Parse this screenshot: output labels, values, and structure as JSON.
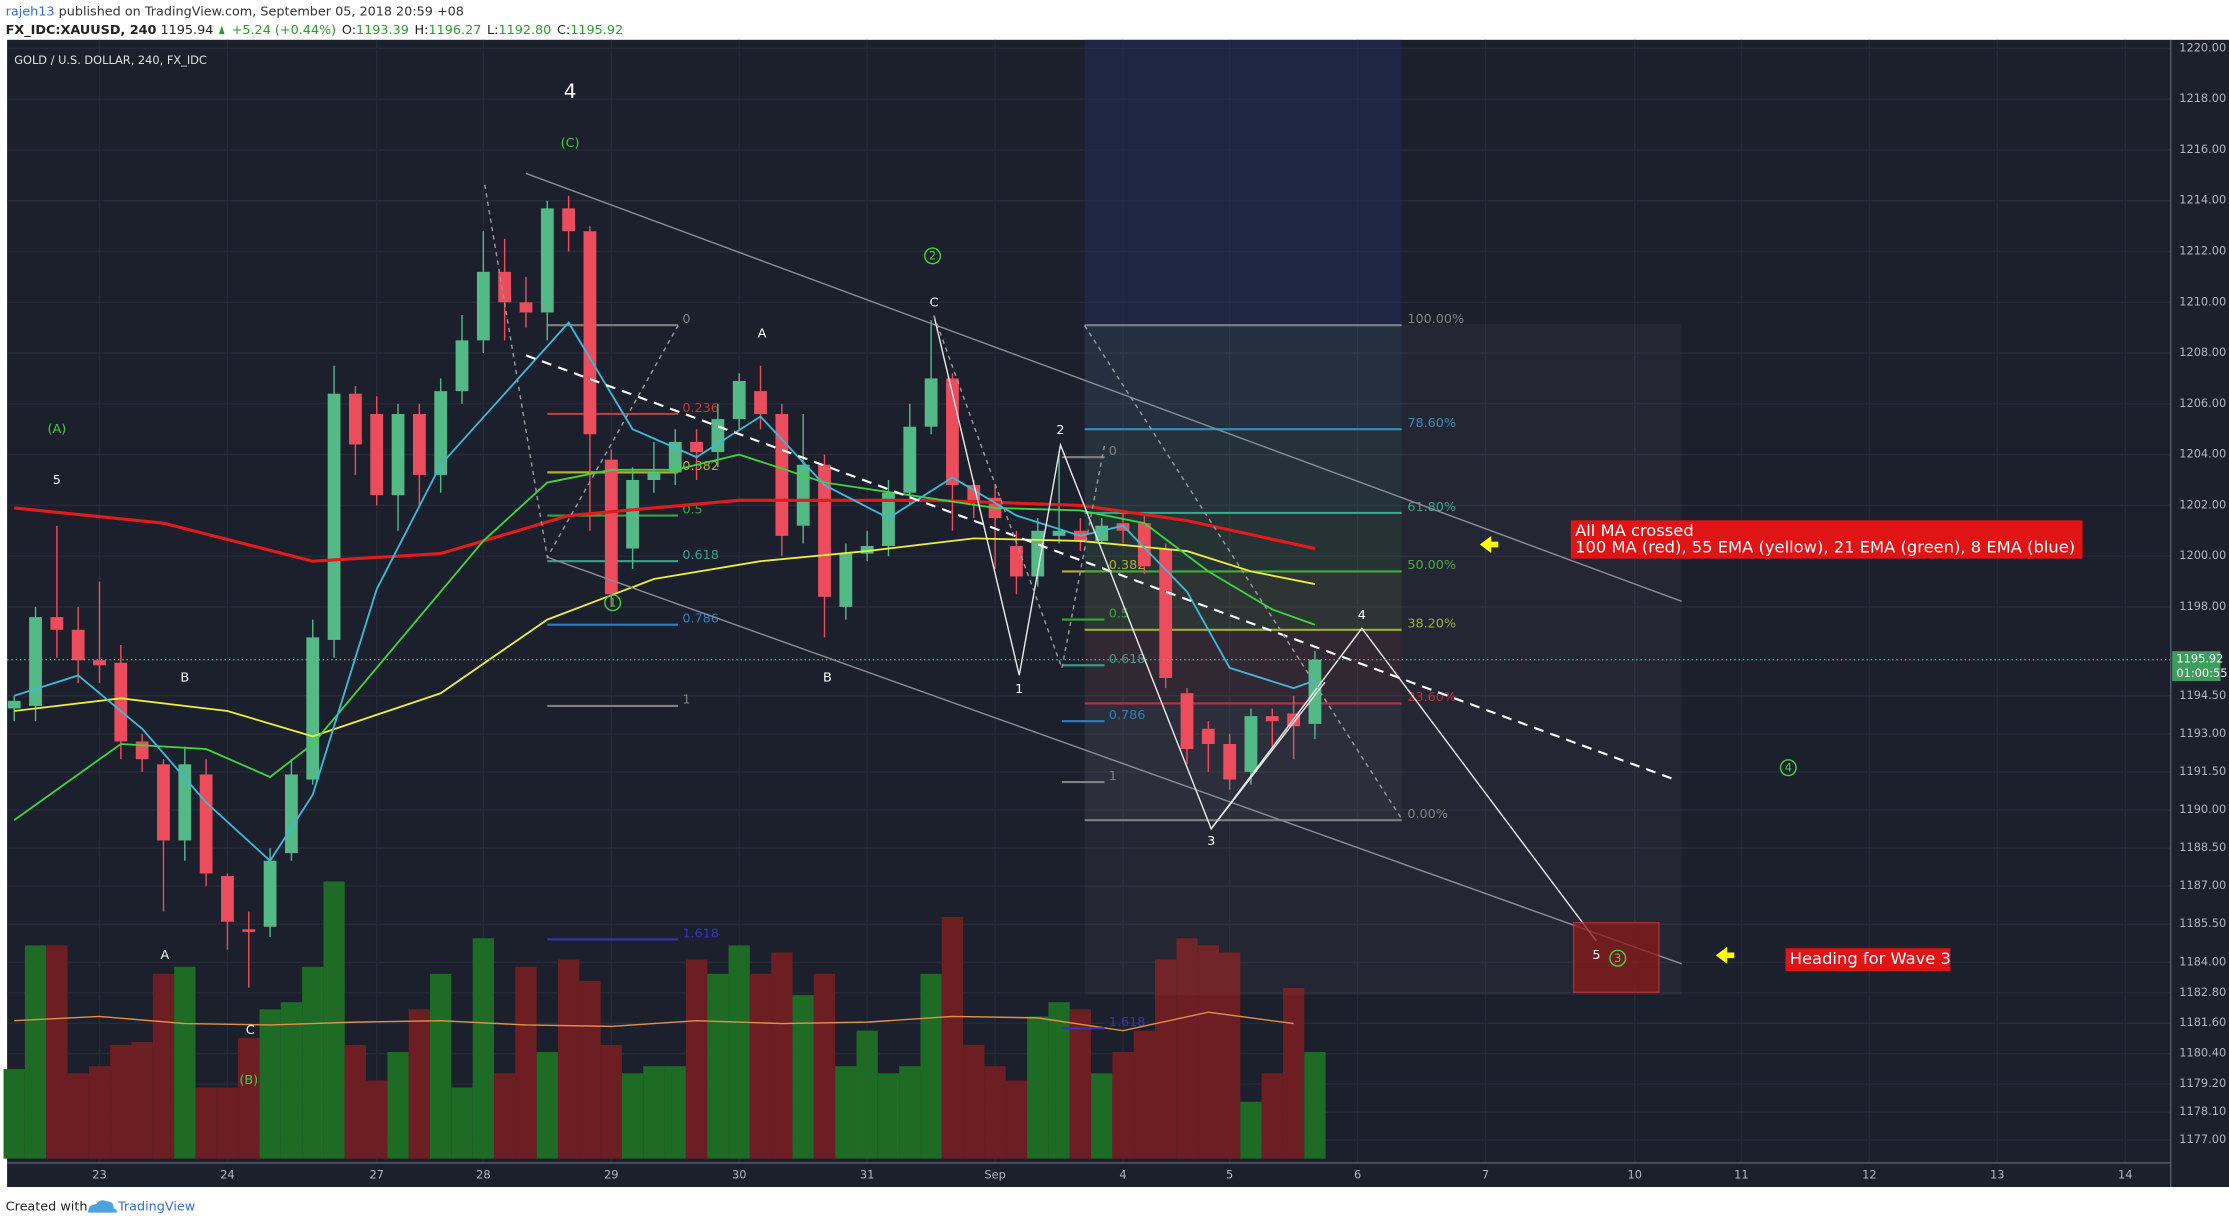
{
  "header": {
    "author": "rajeh13",
    "published": "published on TradingView.com, September 05, 2018 20:59 +08",
    "symbol": "FX_IDC:XAUUSD, 240",
    "last": "1195.94",
    "change": "+5.24 (+0.44%)",
    "ohlc": [
      [
        "O:",
        "1193.39"
      ],
      [
        "H:",
        "1196.27"
      ],
      [
        "L:",
        "1192.80"
      ],
      [
        "C:",
        "1195.92"
      ]
    ]
  },
  "chart_data": {
    "type": "candlestick",
    "title": "GOLD / U.S. DOLLAR, 240, FX_IDC",
    "open": [
      1194,
      1194.1,
      1197.6,
      1197.1,
      1195.9,
      1195.8,
      1192.7,
      1191.8,
      1188.8,
      1191.4,
      1187.4,
      1185.3,
      1185.4,
      1188.3,
      1191.2,
      1196.7,
      1206.4,
      1205.6,
      1202.4,
      1205.6,
      1203.2,
      1206.5,
      1208.5,
      1211.2,
      1210,
      1209.6,
      1213.7,
      1212.8,
      1203.8,
      1200.3,
      1203,
      1203.3,
      1204.5,
      1204.1,
      1205.4,
      1206.5,
      1205.6,
      1201.2,
      1203.6,
      1198,
      1200.1,
      1200.4,
      1202.5,
      1205.1,
      1207,
      1202.8,
      1202.3,
      1200.4,
      1199.2,
      1200.8,
      1201,
      1200.6,
      1201.3,
      1201.3,
      1200.3,
      1194.6,
      1193.2,
      1192.6,
      1191.5,
      1193.7,
      1193.8,
      1193.39
    ],
    "high": [
      1194.5,
      1198,
      1201.2,
      1198,
      1199,
      1196.5,
      1193,
      1192,
      1192.5,
      1192,
      1187.5,
      1186,
      1188.5,
      1192,
      1197.5,
      1207.5,
      1206.7,
      1206.3,
      1206,
      1206,
      1207,
      1209.5,
      1212.8,
      1212.5,
      1211,
      1214,
      1214.2,
      1213,
      1204.2,
      1203.5,
      1204.5,
      1205,
      1205,
      1206,
      1207.2,
      1207.5,
      1206,
      1205.6,
      1204,
      1200.5,
      1201,
      1203,
      1206,
      1209.3,
      1207.2,
      1203,
      1202.8,
      1201,
      1201.5,
      1204,
      1201.5,
      1201.5,
      1201.7,
      1201.6,
      1200.5,
      1194.8,
      1193.5,
      1193,
      1194,
      1194,
      1194.5,
      1196.27
    ],
    "low": [
      1193.5,
      1193.5,
      1196,
      1195,
      1195,
      1192,
      1191.5,
      1186,
      1188,
      1187,
      1184.5,
      1183,
      1185,
      1188,
      1191,
      1196,
      1203.2,
      1202,
      1201,
      1202,
      1202.5,
      1206,
      1208,
      1208.5,
      1209,
      1208.5,
      1212,
      1201,
      1198,
      1199.5,
      1202.5,
      1202.8,
      1203,
      1203.5,
      1205,
      1205,
      1200,
      1200.5,
      1196.8,
      1197.5,
      1199.8,
      1200,
      1202,
      1204.8,
      1201,
      1201.5,
      1199.5,
      1198.5,
      1198.8,
      1200.5,
      1200.2,
      1200.5,
      1200.5,
      1199.3,
      1194.8,
      1191.8,
      1191.5,
      1190.8,
      1191,
      1192.5,
      1192,
      1192.8
    ],
    "close": [
      1194.3,
      1197.6,
      1197.1,
      1195.9,
      1195.7,
      1192.7,
      1192,
      1188.8,
      1191.8,
      1187.5,
      1185.6,
      1185.2,
      1188,
      1191.4,
      1196.8,
      1206.4,
      1204.4,
      1202.4,
      1205.6,
      1203.2,
      1206.5,
      1208.5,
      1211.2,
      1210,
      1209.6,
      1213.7,
      1212.8,
      1204.8,
      1198.5,
      1203,
      1203.3,
      1204.5,
      1204.1,
      1205.4,
      1206.9,
      1205.6,
      1200.8,
      1203.6,
      1198.4,
      1200.1,
      1200.4,
      1202.5,
      1205.1,
      1207,
      1202.8,
      1202.2,
      1201.5,
      1199.2,
      1201,
      1201,
      1200.6,
      1201.2,
      1201,
      1199.6,
      1195.2,
      1192.4,
      1192.6,
      1191.2,
      1193.7,
      1193.5,
      1193.3,
      1195.92
    ],
    "volume": [
      63,
      150,
      150,
      60,
      65,
      80,
      82,
      130,
      135,
      50,
      50,
      85,
      105,
      110,
      135,
      195,
      80,
      55,
      75,
      105,
      130,
      50,
      155,
      60,
      135,
      75,
      140,
      125,
      80,
      60,
      65,
      65,
      140,
      130,
      150,
      130,
      145,
      115,
      130,
      65,
      90,
      60,
      65,
      130,
      170,
      80,
      65,
      55,
      100,
      110,
      105,
      60,
      75,
      90,
      140,
      155,
      150,
      145,
      40,
      60,
      120,
      75
    ],
    "volume_ma": {
      "color": "#e0904a",
      "x": [
        0,
        4,
        8,
        12,
        16,
        20,
        24,
        28,
        32,
        36,
        40,
        44,
        48,
        52,
        56,
        60
      ],
      "values": [
        97,
        100,
        95,
        94,
        96,
        97,
        94,
        93,
        97,
        95,
        96,
        100,
        99,
        90,
        103,
        95
      ]
    },
    "up_color": "#53b987",
    "down_color": "#eb4d5c",
    "up_volume_color": "#1d6b25",
    "down_volume_color": "#6d1e22",
    "ma": [
      {
        "color": "#e31b1b",
        "x": [
          0,
          7,
          14,
          20,
          26,
          34,
          43,
          50,
          55,
          61
        ],
        "values": [
          1201.9,
          1201.3,
          1199.8,
          1200.1,
          1201.6,
          1202.2,
          1202.2,
          1202,
          1201.4,
          1200.3
        ]
      },
      {
        "color": "#ecec3a",
        "x": [
          0,
          5,
          10,
          14,
          20,
          25,
          30,
          35,
          40,
          45,
          50,
          55,
          58,
          61
        ],
        "values": [
          1193.9,
          1194.4,
          1193.9,
          1192.9,
          1194.6,
          1197.5,
          1199.1,
          1199.8,
          1200.2,
          1200.7,
          1200.6,
          1200.2,
          1199.4,
          1198.9
        ]
      },
      {
        "color": "#3ed43e",
        "x": [
          0,
          5,
          9,
          12,
          14,
          18,
          22,
          25,
          28,
          31,
          34,
          38,
          42,
          46,
          50,
          53,
          56,
          59,
          61
        ],
        "values": [
          1189.6,
          1192.6,
          1192.4,
          1191.3,
          1192.6,
          1196.6,
          1200.6,
          1202.9,
          1203.4,
          1203.4,
          1204,
          1202.9,
          1202.4,
          1201.9,
          1201.8,
          1201.3,
          1199.4,
          1197.9,
          1197.3
        ]
      },
      {
        "color": "#3bb9d6",
        "x": [
          0,
          3,
          6,
          9,
          12,
          14,
          17,
          20,
          23,
          26,
          29,
          32,
          35,
          38,
          41,
          44,
          47,
          50,
          52,
          55,
          57,
          60,
          61
        ],
        "values": [
          1194.5,
          1195.3,
          1193.2,
          1190.3,
          1188,
          1190.6,
          1198.7,
          1203.6,
          1206.4,
          1209.2,
          1205,
          1203.9,
          1205.5,
          1202.8,
          1201.5,
          1203.1,
          1201.6,
          1200.8,
          1201.2,
          1198.6,
          1195.6,
          1194.8,
          1195.1
        ]
      }
    ],
    "xlim": [
      -0.333,
      101.133
    ],
    "xticks": [
      {
        "value": 4,
        "label": "23"
      },
      {
        "value": 10,
        "label": "24"
      },
      {
        "value": 17,
        "label": "27"
      },
      {
        "value": 22,
        "label": "28"
      },
      {
        "value": 28,
        "label": "29"
      },
      {
        "value": 34,
        "label": "30"
      },
      {
        "value": 40,
        "label": "31"
      },
      {
        "value": 46,
        "label": "Sep"
      },
      {
        "value": 52,
        "label": "4"
      },
      {
        "value": 57,
        "label": "5"
      },
      {
        "value": 63,
        "label": "6"
      },
      {
        "value": 69,
        "label": "7"
      },
      {
        "value": 76,
        "label": "10"
      },
      {
        "value": 81,
        "label": "11"
      },
      {
        "value": 87,
        "label": "12"
      },
      {
        "value": 93,
        "label": "13"
      },
      {
        "value": 99,
        "label": "14"
      }
    ],
    "ylim": [
      1176.1,
      1220.34
    ],
    "yticks": [
      {
        "value": 1220,
        "label": "1220.00"
      },
      {
        "value": 1218,
        "label": "1218.00"
      },
      {
        "value": 1216,
        "label": "1216.00"
      },
      {
        "value": 1214,
        "label": "1214.00"
      },
      {
        "value": 1212,
        "label": "1212.00"
      },
      {
        "value": 1210,
        "label": "1210.00"
      },
      {
        "value": 1208,
        "label": "1208.00"
      },
      {
        "value": 1206,
        "label": "1206.00"
      },
      {
        "value": 1204,
        "label": "1204.00"
      },
      {
        "value": 1202,
        "label": "1202.00"
      },
      {
        "value": 1200,
        "label": "1200.00"
      },
      {
        "value": 1198,
        "label": "1198.00"
      },
      {
        "value": 1194.5,
        "label": "1194.50"
      },
      {
        "value": 1193,
        "label": "1193.00"
      },
      {
        "value": 1191.5,
        "label": "1191.50"
      },
      {
        "value": 1190,
        "label": "1190.00"
      },
      {
        "value": 1188.5,
        "label": "1188.50"
      },
      {
        "value": 1187,
        "label": "1187.00"
      },
      {
        "value": 1185.5,
        "label": "1185.50"
      },
      {
        "value": 1184,
        "label": "1184.00"
      },
      {
        "value": 1182.8,
        "label": "1182.80"
      },
      {
        "value": 1181.6,
        "label": "1181.60"
      },
      {
        "value": 1180.4,
        "label": "1180.40"
      },
      {
        "value": 1179.2,
        "label": "1179.20"
      },
      {
        "value": 1178.1,
        "label": "1178.10"
      },
      {
        "value": 1177,
        "label": "1177.00"
      }
    ],
    "grid": true,
    "last_price": {
      "value": 1195.92,
      "label": "1195.92"
    },
    "countdown": "01:00:55",
    "fibs": [
      {
        "levels": [
          {
            "label": "0",
            "price": 1209.1,
            "color": "#808080"
          },
          {
            "label": "0.236",
            "price": 1205.6,
            "color": "#c0393c"
          },
          {
            "label": "0.382",
            "price": 1203.3,
            "color": "#b0b030"
          },
          {
            "label": "0.5",
            "price": 1201.6,
            "color": "#3aa63a"
          },
          {
            "label": "0.618",
            "price": 1199.8,
            "color": "#3aa08c"
          },
          {
            "label": "0.786",
            "price": 1197.3,
            "color": "#2f7fc0"
          },
          {
            "label": "1",
            "price": 1194.1,
            "color": "#808080"
          },
          {
            "label": "1.618",
            "price": 1184.9,
            "color": "#3535b5"
          }
        ]
      },
      {
        "levels": [
          {
            "label": "0",
            "price": 1203.9,
            "color": "#808080"
          },
          {
            "label": "0.382",
            "price": 1199.4,
            "color": "#b0b030"
          },
          {
            "label": "0.5",
            "price": 1197.5,
            "color": "#3aa63a"
          },
          {
            "label": "0.618",
            "price": 1195.7,
            "color": "#3aa08c"
          },
          {
            "label": "0.786",
            "price": 1193.5,
            "color": "#2f7fc0"
          },
          {
            "label": "1",
            "price": 1191.1,
            "color": "#808080"
          },
          {
            "label": "1.618",
            "price": 1181.4,
            "color": "#3535b5"
          }
        ]
      },
      {
        "levels": [
          {
            "label": "100.00%",
            "price": 1209.1,
            "color": "#808080"
          },
          {
            "label": "78.60%",
            "price": 1205,
            "color": "#2f8fc0"
          },
          {
            "label": "61.80%",
            "price": 1201.7,
            "color": "#32a88a"
          },
          {
            "label": "50.00%",
            "price": 1199.4,
            "color": "#45ad3a"
          },
          {
            "label": "38.20%",
            "price": 1197.1,
            "color": "#9cb032"
          },
          {
            "label": "23.60%",
            "price": 1194.2,
            "color": "#b83338"
          },
          {
            "label": "0.00%",
            "price": 1189.6,
            "color": "#808080"
          }
        ]
      }
    ],
    "wave_labels": [
      {
        "text": "4",
        "color": "#ffffff"
      },
      {
        "text": "(C)",
        "color": "#3ed43e"
      },
      {
        "text": "(A)",
        "color": "#3ed43e"
      },
      {
        "text": "5",
        "color": "#ffffff"
      },
      {
        "text": "B",
        "color": "#ffffff"
      },
      {
        "text": "A",
        "color": "#ffffff"
      },
      {
        "text": "C",
        "color": "#ffffff"
      },
      {
        "text": "(B)",
        "color": "#3ed43e"
      },
      {
        "text": "A",
        "color": "#ffffff"
      },
      {
        "text": "C",
        "color": "#ffffff"
      },
      {
        "text": "B",
        "color": "#ffffff"
      },
      {
        "text": "1",
        "color": "#ffffff"
      },
      {
        "text": "2",
        "color": "#ffffff"
      },
      {
        "text": "3",
        "color": "#ffffff"
      },
      {
        "text": "4",
        "color": "#ffffff"
      },
      {
        "text": "5",
        "color": "#ffffff"
      }
    ],
    "circled_labels": [
      {
        "text": "1",
        "color": "#3ed43e"
      },
      {
        "text": "2",
        "color": "#3ed43e"
      },
      {
        "text": "3",
        "color": "#3ed43e"
      },
      {
        "text": "4",
        "color": "#3ed43e"
      }
    ],
    "callouts": [
      {
        "lines": [
          "All MA crossed",
          "100 MA (red), 55 EMA (yellow), 21 EMA (green), 8 EMA (blue)"
        ]
      },
      {
        "lines": [
          "Heading for Wave 3"
        ]
      }
    ]
  },
  "footer": {
    "text": "Created with",
    "brand": "TradingView"
  }
}
